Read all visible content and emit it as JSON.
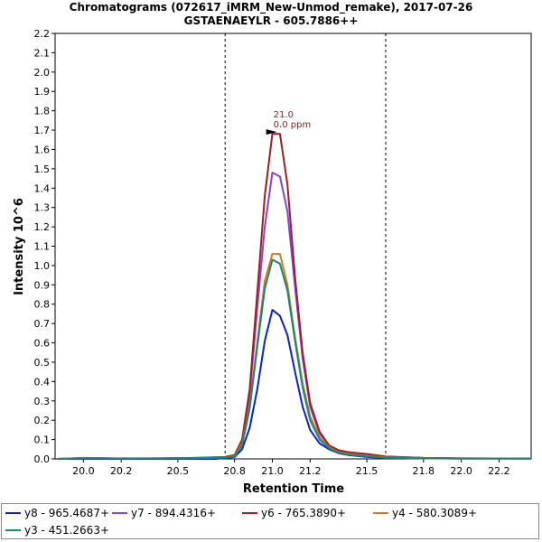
{
  "title": {
    "line1": "Chromatograms (072617_iMRM_New-Unmod_remake), 2017-07-26",
    "line2": "GSTAENAEYLR - 605.7886++"
  },
  "chart_data": {
    "type": "line",
    "title": "Chromatograms (072617_iMRM_New-Unmod_remake), 2017-07-26",
    "subtitle": "GSTAENAEYLR - 605.7886++",
    "xlabel": "Retention Time",
    "ylabel": "Intensity 10^6",
    "xlim": [
      19.85,
      22.37
    ],
    "ylim": [
      0.0,
      2.2
    ],
    "xticks": [
      20.0,
      20.2,
      20.5,
      20.8,
      21.0,
      21.2,
      21.5,
      21.8,
      22.0,
      22.2
    ],
    "xtick_labels": [
      "20.0",
      "20.2",
      "20.5",
      "20.8",
      "21.0",
      "21.2",
      "21.5",
      "21.8",
      "22.0",
      "22.2"
    ],
    "yticks": [
      0.0,
      0.1,
      0.2,
      0.3,
      0.4,
      0.5,
      0.6,
      0.7,
      0.8,
      0.9,
      1.0,
      1.1,
      1.2,
      1.3,
      1.4,
      1.5,
      1.6,
      1.7,
      1.8,
      1.9,
      2.0,
      2.1,
      2.2
    ],
    "ytick_labels": [
      "0.0",
      "0.1",
      "0.2",
      "0.3",
      "0.4",
      "0.5",
      "0.6",
      "0.7",
      "0.8",
      "0.9",
      "1.0",
      "1.1",
      "1.2",
      "1.3",
      "1.4",
      "1.5",
      "1.6",
      "1.7",
      "1.8",
      "1.9",
      "2.0",
      "2.1",
      "2.2"
    ],
    "boundaries": [
      20.75,
      21.6
    ],
    "annotation": {
      "x": 21.02,
      "y": 1.69,
      "line1": "21.0",
      "line2": "0.0 ppm"
    },
    "legend_position": "bottom",
    "x": [
      19.86,
      20.0,
      20.2,
      20.4,
      20.6,
      20.7,
      20.75,
      20.8,
      20.84,
      20.88,
      20.92,
      20.96,
      21.0,
      21.04,
      21.08,
      21.12,
      21.16,
      21.2,
      21.25,
      21.3,
      21.35,
      21.4,
      21.45,
      21.5,
      21.6,
      21.8,
      22.0,
      22.37
    ],
    "series": [
      {
        "name": "y8 - 965.4687+",
        "color": "#0a1fd6",
        "values": [
          0.0,
          0.0,
          0.0,
          0.0,
          0.0,
          0.0,
          0.005,
          0.01,
          0.05,
          0.16,
          0.36,
          0.61,
          0.77,
          0.74,
          0.64,
          0.45,
          0.27,
          0.15,
          0.08,
          0.05,
          0.03,
          0.02,
          0.015,
          0.01,
          0.005,
          0.003,
          0.002,
          0.002
        ]
      },
      {
        "name": "y7 - 894.4316+",
        "color": "#8a3fdc",
        "values": [
          0.0,
          0.005,
          0.003,
          0.003,
          0.005,
          0.008,
          0.01,
          0.02,
          0.09,
          0.33,
          0.78,
          1.2,
          1.48,
          1.46,
          1.28,
          0.89,
          0.52,
          0.27,
          0.13,
          0.07,
          0.045,
          0.035,
          0.03,
          0.025,
          0.012,
          0.005,
          0.003,
          0.002
        ]
      },
      {
        "name": "y6 - 765.3890+",
        "color": "#a01e1e",
        "values": [
          0.0,
          0.004,
          0.002,
          0.003,
          0.005,
          0.008,
          0.01,
          0.02,
          0.1,
          0.36,
          0.86,
          1.36,
          1.68,
          1.68,
          1.42,
          0.94,
          0.55,
          0.29,
          0.14,
          0.07,
          0.045,
          0.035,
          0.03,
          0.025,
          0.012,
          0.005,
          0.003,
          0.002
        ]
      },
      {
        "name": "y4 - 580.3089+",
        "color": "#d9771e",
        "values": [
          0.0,
          0.004,
          0.002,
          0.003,
          0.004,
          0.006,
          0.008,
          0.015,
          0.08,
          0.27,
          0.6,
          0.92,
          1.06,
          1.06,
          0.9,
          0.63,
          0.39,
          0.22,
          0.11,
          0.06,
          0.035,
          0.025,
          0.02,
          0.015,
          0.008,
          0.004,
          0.002,
          0.002
        ]
      },
      {
        "name": "y3 - 451.2663+",
        "color": "#158a72",
        "values": [
          0.0,
          0.003,
          0.002,
          0.002,
          0.004,
          0.005,
          0.007,
          0.012,
          0.07,
          0.26,
          0.58,
          0.88,
          1.03,
          1.01,
          0.87,
          0.61,
          0.37,
          0.2,
          0.1,
          0.055,
          0.032,
          0.022,
          0.018,
          0.013,
          0.006,
          0.003,
          0.002,
          0.002
        ]
      }
    ]
  }
}
